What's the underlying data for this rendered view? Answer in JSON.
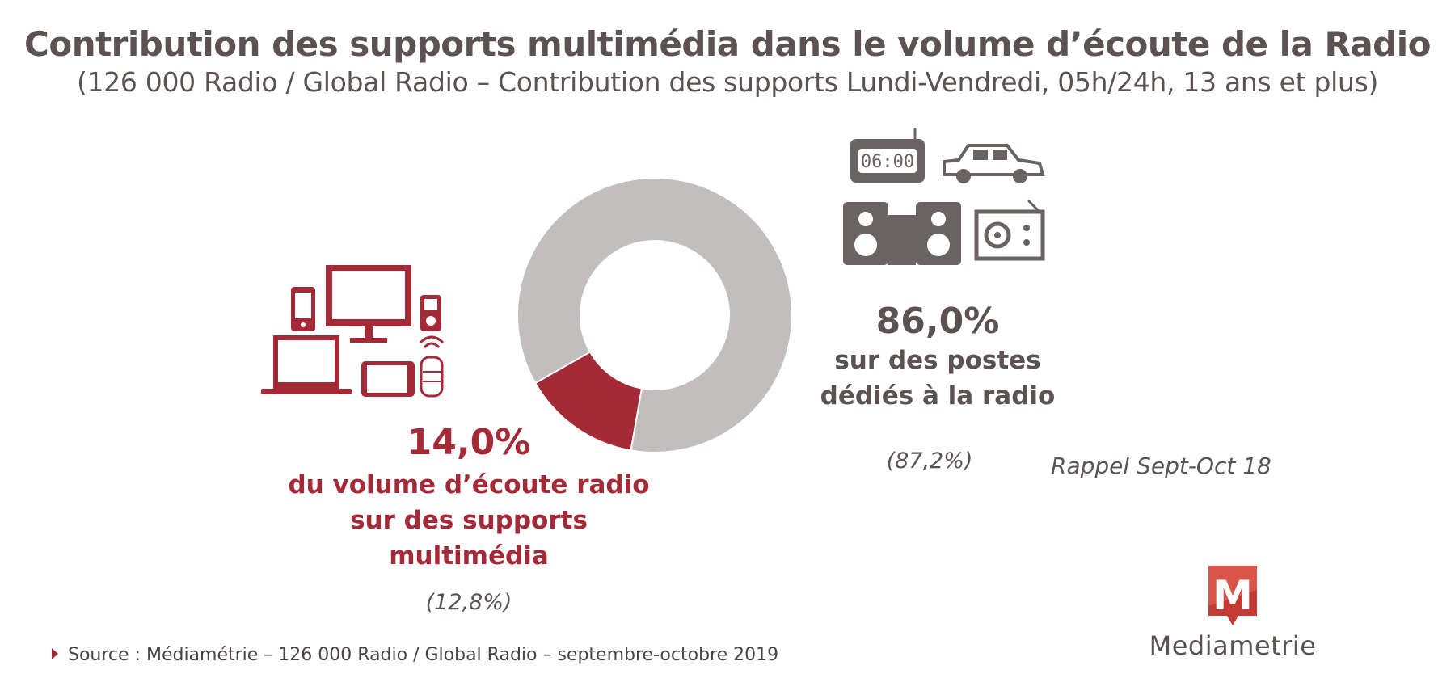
{
  "title": "Contribution des supports multimédia dans le volume d’écoute de la Radio",
  "subtitle": "(126 000 Radio / Global Radio – Contribution des supports Lundi-Vendredi, 05h/24h, 13 ans et plus)",
  "chart_data": {
    "type": "pie",
    "donut": true,
    "title": "Contribution des supports multimédia dans le volume d’écoute de la Radio",
    "subtitle": "(126 000 Radio / Global Radio – Contribution des supports Lundi-Vendredi, 05h/24h, 13 ans et plus)",
    "slices": [
      {
        "name": "du volume d’écoute radio sur des supports multimédia",
        "value": 14.0,
        "label": "14,0%",
        "previous": "(12,8%)",
        "color": "#a52a38"
      },
      {
        "name": "sur des postes dédiés à la radio",
        "value": 86.0,
        "label": "86,0%",
        "previous": "(87,2%)",
        "color": "#c2bebe"
      }
    ],
    "legend": "none"
  },
  "labels": {
    "multi": {
      "pct": "14,0%",
      "lines": [
        "du volume d’écoute radio",
        "sur des supports",
        "multimédia"
      ],
      "previous": "(12,8%)"
    },
    "dedie": {
      "pct": "86,0%",
      "lines": [
        "sur des postes",
        "dédiés à la radio"
      ],
      "previous": "(87,2%)"
    },
    "rappel": "Rappel Sept-Oct 18"
  },
  "icons": {
    "clock_text": "06:00",
    "multimedia": [
      "smartphone-icon",
      "monitor-icon",
      "mp3-player-icon",
      "laptop-icon",
      "tablet-icon",
      "smart-speaker-icon"
    ],
    "dedicated": [
      "clock-radio-icon",
      "car-icon",
      "hifi-speakers-icon",
      "radio-icon"
    ]
  },
  "source": "Source : Médiamétrie – 126 000 Radio / Global Radio – septembre-octobre 2019",
  "logo": {
    "letter": "M",
    "name": "Mediametrie"
  },
  "colors": {
    "accent": "#a52a38",
    "grey": "#c2bebe",
    "dark": "#5b5251",
    "icon_grey": "#6b6361"
  }
}
